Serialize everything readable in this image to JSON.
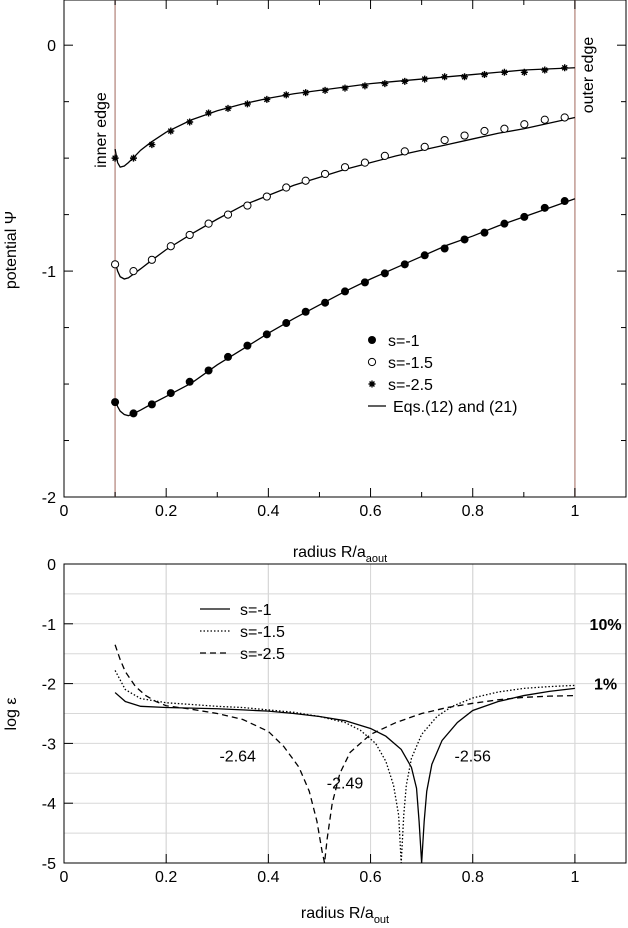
{
  "chart_data": [
    {
      "type": "line",
      "xlabel": "radius R/a",
      "xlabel_sub": "aout",
      "ylabel": "potential Ψ",
      "xlim": [
        0,
        1.1
      ],
      "ylim": [
        -2,
        0.2
      ],
      "xticks": [
        "0",
        "0.2",
        "0.4",
        "0.6",
        "0.8",
        "1"
      ],
      "yticks": [
        "0",
        "-1",
        "-2"
      ],
      "edges": {
        "inner_label": "inner edge",
        "outer_label": "outer edge",
        "inner_x": 0.1,
        "outer_x": 1.0,
        "color": "#c09a92"
      },
      "legend": [
        "s=-1",
        "s=-1.5",
        "s=-2.5",
        "Eqs.(12) and (21)"
      ],
      "series": [
        {
          "name": "s=-1",
          "marker": "filled-circle",
          "x": [
            0.1,
            0.136,
            0.172,
            0.209,
            0.246,
            0.283,
            0.321,
            0.359,
            0.397,
            0.435,
            0.473,
            0.511,
            0.55,
            0.589,
            0.628,
            0.667,
            0.706,
            0.745,
            0.784,
            0.823,
            0.862,
            0.901,
            0.941,
            0.98
          ],
          "y": [
            -1.58,
            -1.63,
            -1.59,
            -1.54,
            -1.49,
            -1.44,
            -1.38,
            -1.33,
            -1.28,
            -1.23,
            -1.18,
            -1.14,
            -1.09,
            -1.05,
            -1.01,
            -0.97,
            -0.93,
            -0.9,
            -0.86,
            -0.83,
            -0.79,
            -0.76,
            -0.72,
            -0.69
          ]
        },
        {
          "name": "s=-1.5",
          "marker": "open-circle",
          "x": [
            0.1,
            0.136,
            0.172,
            0.209,
            0.246,
            0.283,
            0.321,
            0.359,
            0.397,
            0.435,
            0.473,
            0.511,
            0.55,
            0.589,
            0.628,
            0.667,
            0.706,
            0.745,
            0.784,
            0.823,
            0.862,
            0.901,
            0.941,
            0.98
          ],
          "y": [
            -0.97,
            -1.0,
            -0.95,
            -0.89,
            -0.84,
            -0.79,
            -0.75,
            -0.71,
            -0.67,
            -0.63,
            -0.6,
            -0.57,
            -0.54,
            -0.52,
            -0.49,
            -0.47,
            -0.45,
            -0.42,
            -0.4,
            -0.38,
            -0.37,
            -0.35,
            -0.33,
            -0.32
          ]
        },
        {
          "name": "s=-2.5",
          "marker": "star",
          "x": [
            0.1,
            0.136,
            0.172,
            0.209,
            0.246,
            0.283,
            0.321,
            0.359,
            0.397,
            0.435,
            0.473,
            0.511,
            0.55,
            0.589,
            0.628,
            0.667,
            0.706,
            0.745,
            0.784,
            0.823,
            0.862,
            0.901,
            0.941,
            0.98
          ],
          "y": [
            -0.5,
            -0.5,
            -0.44,
            -0.38,
            -0.34,
            -0.3,
            -0.28,
            -0.26,
            -0.24,
            -0.22,
            -0.21,
            -0.2,
            -0.19,
            -0.18,
            -0.17,
            -0.16,
            -0.15,
            -0.14,
            -0.14,
            -0.13,
            -0.12,
            -0.12,
            -0.11,
            -0.1
          ]
        }
      ],
      "fit_curves": [
        {
          "series": "s=-1",
          "x": [
            0.1,
            0.105,
            0.11,
            0.118,
            0.126,
            0.135,
            0.15,
            0.17,
            0.2,
            0.25,
            0.3,
            0.35,
            0.4,
            0.45,
            0.5,
            0.55,
            0.6,
            0.65,
            0.7,
            0.75,
            0.8,
            0.85,
            0.9,
            0.95,
            1.0
          ],
          "y": [
            -1.57,
            -1.6,
            -1.62,
            -1.635,
            -1.64,
            -1.632,
            -1.615,
            -1.59,
            -1.555,
            -1.495,
            -1.415,
            -1.345,
            -1.275,
            -1.21,
            -1.15,
            -1.09,
            -1.035,
            -0.985,
            -0.935,
            -0.885,
            -0.845,
            -0.8,
            -0.76,
            -0.72,
            -0.68
          ]
        },
        {
          "series": "s=-1.5",
          "x": [
            0.1,
            0.105,
            0.11,
            0.118,
            0.126,
            0.135,
            0.15,
            0.17,
            0.2,
            0.25,
            0.3,
            0.35,
            0.4,
            0.45,
            0.5,
            0.55,
            0.6,
            0.65,
            0.7,
            0.75,
            0.8,
            0.85,
            0.9,
            0.95,
            1.0
          ],
          "y": [
            -0.96,
            -1.0,
            -1.025,
            -1.035,
            -1.03,
            -1.015,
            -0.99,
            -0.955,
            -0.905,
            -0.835,
            -0.77,
            -0.71,
            -0.665,
            -0.62,
            -0.585,
            -0.55,
            -0.52,
            -0.49,
            -0.465,
            -0.44,
            -0.415,
            -0.39,
            -0.37,
            -0.345,
            -0.32
          ]
        },
        {
          "series": "s=-2.5",
          "x": [
            0.1,
            0.105,
            0.11,
            0.118,
            0.126,
            0.135,
            0.15,
            0.17,
            0.2,
            0.25,
            0.3,
            0.35,
            0.4,
            0.45,
            0.5,
            0.55,
            0.6,
            0.65,
            0.7,
            0.75,
            0.8,
            0.85,
            0.9,
            0.95,
            1.0
          ],
          "y": [
            -0.46,
            -0.52,
            -0.54,
            -0.535,
            -0.52,
            -0.5,
            -0.465,
            -0.43,
            -0.385,
            -0.33,
            -0.29,
            -0.26,
            -0.235,
            -0.215,
            -0.2,
            -0.185,
            -0.17,
            -0.16,
            -0.15,
            -0.14,
            -0.13,
            -0.12,
            -0.11,
            -0.105,
            -0.1
          ]
        }
      ]
    },
    {
      "type": "line",
      "xlabel": "radius R/a",
      "xlabel_sub": "out",
      "ylabel": "log ε",
      "xlim": [
        0,
        1.1
      ],
      "ylim": [
        -5,
        0
      ],
      "xticks": [
        "0",
        "0.2",
        "0.4",
        "0.6",
        "0.8",
        "1"
      ],
      "yticks": [
        "0",
        "-1",
        "-2",
        "-3",
        "-4",
        "-5"
      ],
      "grid": true,
      "legend": [
        "s=-1",
        "s=-1.5",
        "s=-2.5"
      ],
      "annotations": [
        {
          "text": "-2.64",
          "x": 0.34,
          "y": -3.2
        },
        {
          "text": "-2.49",
          "x": 0.55,
          "y": -3.65
        },
        {
          "text": "-2.56",
          "x": 0.8,
          "y": -3.2
        },
        {
          "text": "10%",
          "x": 1.06,
          "y": -1.0,
          "bold": true
        },
        {
          "text": "1%",
          "x": 1.06,
          "y": -2.0,
          "bold": true
        }
      ],
      "series": [
        {
          "name": "s=-1",
          "style": "solid",
          "x": [
            0.1,
            0.12,
            0.15,
            0.2,
            0.25,
            0.3,
            0.35,
            0.4,
            0.45,
            0.5,
            0.55,
            0.6,
            0.63,
            0.66,
            0.68,
            0.69,
            0.695,
            0.7,
            0.705,
            0.71,
            0.72,
            0.74,
            0.77,
            0.8,
            0.85,
            0.9,
            0.95,
            1.0
          ],
          "y": [
            -2.15,
            -2.3,
            -2.38,
            -2.4,
            -2.41,
            -2.42,
            -2.44,
            -2.46,
            -2.5,
            -2.55,
            -2.62,
            -2.75,
            -2.88,
            -3.1,
            -3.4,
            -3.75,
            -4.3,
            -5.0,
            -4.3,
            -3.8,
            -3.35,
            -2.95,
            -2.65,
            -2.45,
            -2.3,
            -2.2,
            -2.13,
            -2.08
          ]
        },
        {
          "name": "s=-1.5",
          "style": "dotted",
          "x": [
            0.1,
            0.12,
            0.15,
            0.2,
            0.25,
            0.3,
            0.35,
            0.4,
            0.45,
            0.5,
            0.55,
            0.58,
            0.61,
            0.63,
            0.645,
            0.655,
            0.66,
            0.665,
            0.67,
            0.68,
            0.7,
            0.73,
            0.76,
            0.8,
            0.85,
            0.9,
            0.95,
            1.0
          ],
          "y": [
            -1.78,
            -2.1,
            -2.25,
            -2.32,
            -2.35,
            -2.38,
            -2.4,
            -2.44,
            -2.48,
            -2.55,
            -2.65,
            -2.78,
            -3.0,
            -3.3,
            -3.7,
            -4.2,
            -5.0,
            -4.2,
            -3.7,
            -3.25,
            -2.85,
            -2.55,
            -2.38,
            -2.24,
            -2.14,
            -2.08,
            -2.05,
            -2.03
          ]
        },
        {
          "name": "s=-2.5",
          "style": "dashed",
          "x": [
            0.1,
            0.11,
            0.12,
            0.14,
            0.16,
            0.18,
            0.2,
            0.25,
            0.3,
            0.35,
            0.4,
            0.43,
            0.46,
            0.48,
            0.495,
            0.505,
            0.51,
            0.515,
            0.525,
            0.54,
            0.56,
            0.6,
            0.65,
            0.7,
            0.75,
            0.8,
            0.85,
            0.9,
            0.95,
            1.0
          ],
          "y": [
            -1.35,
            -1.6,
            -1.8,
            -2.05,
            -2.2,
            -2.3,
            -2.37,
            -2.43,
            -2.5,
            -2.6,
            -2.8,
            -3.05,
            -3.4,
            -3.8,
            -4.3,
            -4.8,
            -5.0,
            -4.6,
            -4.0,
            -3.5,
            -3.15,
            -2.85,
            -2.65,
            -2.5,
            -2.4,
            -2.33,
            -2.27,
            -2.23,
            -2.21,
            -2.2
          ]
        }
      ]
    }
  ]
}
